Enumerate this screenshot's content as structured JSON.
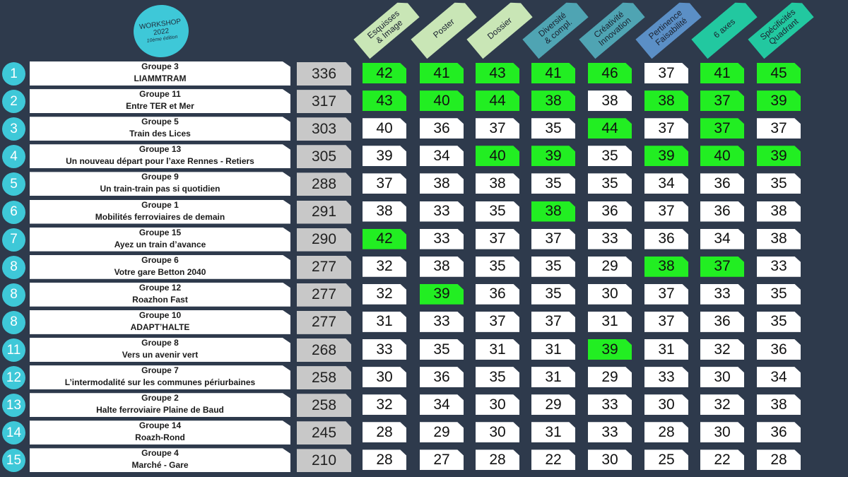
{
  "logo": {
    "line1": "WORKSHOP",
    "line2": "2022",
    "line3": "10ème édition"
  },
  "colors": {
    "background": "#2e3a4c",
    "rank_circle": "#3ec8d8",
    "highlight": "#22ee22",
    "total_box": "#c8c8c8"
  },
  "criteria": [
    {
      "label": "Esquisses\n& Image",
      "color": "#c9e6b6"
    },
    {
      "label": "Poster",
      "color": "#c9e6b6"
    },
    {
      "label": "Dossier",
      "color": "#c9e6b6"
    },
    {
      "label": "Diversité\n& compl.",
      "color": "#4fa4b3"
    },
    {
      "label": "Créativité\nInnovation",
      "color": "#4fa4b3"
    },
    {
      "label": "Pertinence\nFaisabilité",
      "color": "#5b8fc6"
    },
    {
      "label": "6 axes",
      "color": "#22c8a0"
    },
    {
      "label": "Spécificités\nQuadrant",
      "color": "#22c8a0"
    }
  ],
  "rows": [
    {
      "rank": "1",
      "group": "Groupe 3",
      "title": "LIAMMTRAM",
      "total": "336",
      "scores": [
        "42",
        "41",
        "43",
        "41",
        "46",
        "37",
        "41",
        "45"
      ],
      "highlight": [
        true,
        true,
        true,
        true,
        true,
        false,
        true,
        true
      ]
    },
    {
      "rank": "2",
      "group": "Groupe 11",
      "title": "Entre TER et Mer",
      "total": "317",
      "scores": [
        "43",
        "40",
        "44",
        "38",
        "38",
        "38",
        "37",
        "39"
      ],
      "highlight": [
        true,
        true,
        true,
        true,
        false,
        true,
        true,
        true
      ]
    },
    {
      "rank": "3",
      "group": "Groupe 5",
      "title": "Train des Lices",
      "total": "303",
      "scores": [
        "40",
        "36",
        "37",
        "35",
        "44",
        "37",
        "37",
        "37"
      ],
      "highlight": [
        false,
        false,
        false,
        false,
        true,
        false,
        true,
        false
      ]
    },
    {
      "rank": "4",
      "group": "Groupe 13",
      "title": "Un nouveau départ pour l’axe Rennes - Retiers",
      "total": "305",
      "scores": [
        "39",
        "34",
        "40",
        "39",
        "35",
        "39",
        "40",
        "39"
      ],
      "highlight": [
        false,
        false,
        true,
        true,
        false,
        true,
        true,
        true
      ]
    },
    {
      "rank": "5",
      "group": "Groupe 9",
      "title": "Un train-train pas si quotidien",
      "total": "288",
      "scores": [
        "37",
        "38",
        "38",
        "35",
        "35",
        "34",
        "36",
        "35"
      ],
      "highlight": [
        false,
        false,
        false,
        false,
        false,
        false,
        false,
        false
      ]
    },
    {
      "rank": "6",
      "group": "Groupe 1",
      "title": "Mobilités ferroviaires de demain",
      "total": "291",
      "scores": [
        "38",
        "33",
        "35",
        "38",
        "36",
        "37",
        "36",
        "38"
      ],
      "highlight": [
        false,
        false,
        false,
        true,
        false,
        false,
        false,
        false
      ]
    },
    {
      "rank": "7",
      "group": "Groupe 15",
      "title": "Ayez un train d’avance",
      "total": "290",
      "scores": [
        "42",
        "33",
        "37",
        "37",
        "33",
        "36",
        "34",
        "38"
      ],
      "highlight": [
        true,
        false,
        false,
        false,
        false,
        false,
        false,
        false
      ]
    },
    {
      "rank": "8",
      "group": "Groupe 6",
      "title": "Votre gare Betton 2040",
      "total": "277",
      "scores": [
        "32",
        "38",
        "35",
        "35",
        "29",
        "38",
        "37",
        "33"
      ],
      "highlight": [
        false,
        false,
        false,
        false,
        false,
        true,
        true,
        false
      ]
    },
    {
      "rank": "8",
      "group": "Groupe 12",
      "title": "Roazhon Fast",
      "total": "277",
      "scores": [
        "32",
        "39",
        "36",
        "35",
        "30",
        "37",
        "33",
        "35"
      ],
      "highlight": [
        false,
        true,
        false,
        false,
        false,
        false,
        false,
        false
      ]
    },
    {
      "rank": "8",
      "group": "Groupe 10",
      "title": "ADAPT’HALTE",
      "total": "277",
      "scores": [
        "31",
        "33",
        "37",
        "37",
        "31",
        "37",
        "36",
        "35"
      ],
      "highlight": [
        false,
        false,
        false,
        false,
        false,
        false,
        false,
        false
      ]
    },
    {
      "rank": "11",
      "group": "Groupe 8",
      "title": "Vers un avenir vert",
      "total": "268",
      "scores": [
        "33",
        "35",
        "31",
        "31",
        "39",
        "31",
        "32",
        "36"
      ],
      "highlight": [
        false,
        false,
        false,
        false,
        true,
        false,
        false,
        false
      ]
    },
    {
      "rank": "12",
      "group": "Groupe 7",
      "title": "L’intermodalité sur les communes périurbaines",
      "total": "258",
      "scores": [
        "30",
        "36",
        "35",
        "31",
        "29",
        "33",
        "30",
        "34"
      ],
      "highlight": [
        false,
        false,
        false,
        false,
        false,
        false,
        false,
        false
      ]
    },
    {
      "rank": "13",
      "group": "Groupe 2",
      "title": "Halte ferroviaire Plaine de Baud",
      "total": "258",
      "scores": [
        "32",
        "34",
        "30",
        "29",
        "33",
        "30",
        "32",
        "38"
      ],
      "highlight": [
        false,
        false,
        false,
        false,
        false,
        false,
        false,
        false
      ]
    },
    {
      "rank": "14",
      "group": "Groupe 14",
      "title": "Roazh-Rond",
      "total": "245",
      "scores": [
        "28",
        "29",
        "30",
        "31",
        "33",
        "28",
        "30",
        "36"
      ],
      "highlight": [
        false,
        false,
        false,
        false,
        false,
        false,
        false,
        false
      ]
    },
    {
      "rank": "15",
      "group": "Groupe 4",
      "title": "Marché - Gare",
      "total": "210",
      "scores": [
        "28",
        "27",
        "28",
        "22",
        "30",
        "25",
        "22",
        "28"
      ],
      "highlight": [
        false,
        false,
        false,
        false,
        false,
        false,
        false,
        false
      ]
    }
  ]
}
